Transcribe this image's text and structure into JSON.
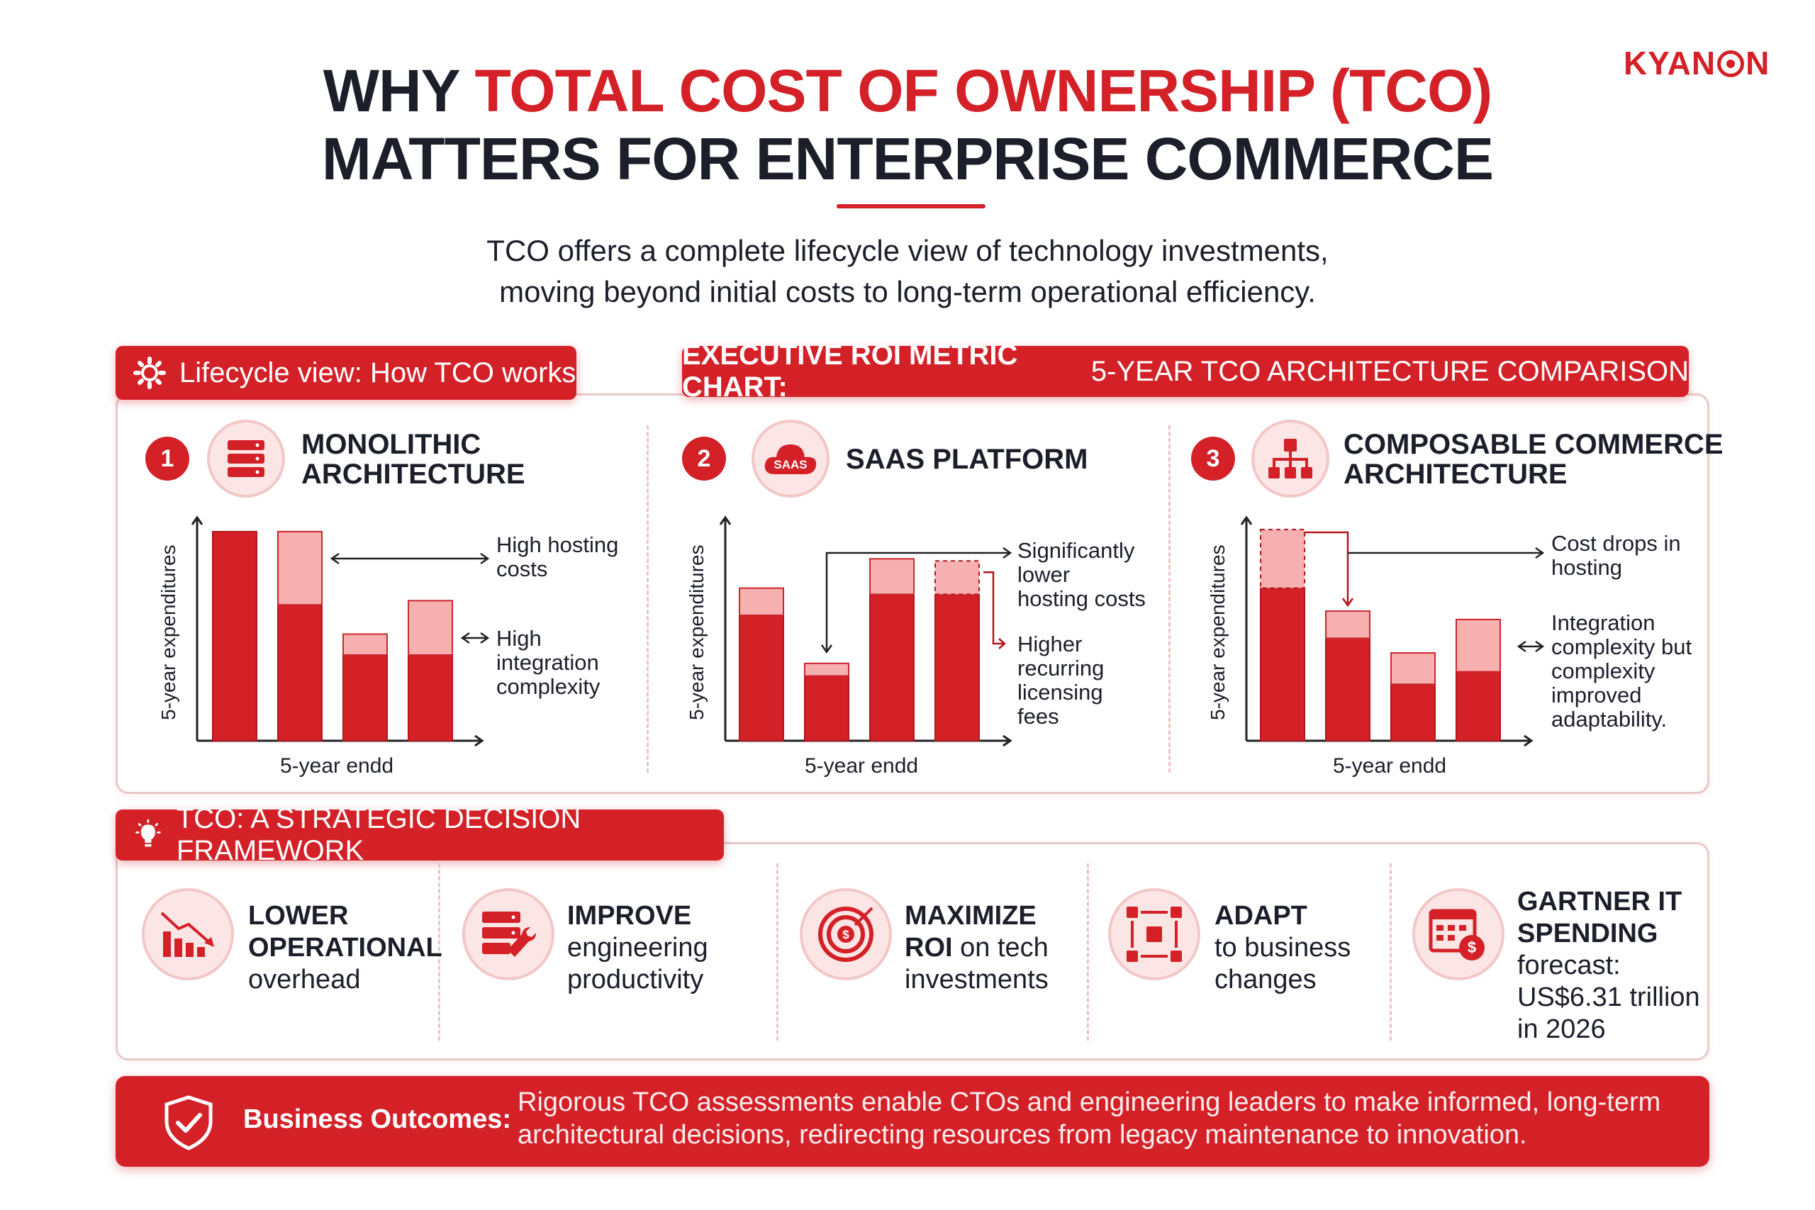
{
  "logo": {
    "text_a": "KYAN",
    "text_b": "N"
  },
  "header": {
    "title_line1_a": "WHY ",
    "title_line1_b": "TOTAL COST OF OWNERSHIP (TCO)",
    "title_line2": "MATTERS FOR ENTERPRISE COMMERCE",
    "subtitle_line1": "TCO offers a complete lifecycle view of technology investments,",
    "subtitle_line2": "moving beyond initial costs to long-term operational efficiency."
  },
  "lifecycle_tab": {
    "label": "Lifecycle view: How TCO works",
    "icon": "gear-icon"
  },
  "roi_tab": {
    "bold": "EXECUTIVE ROI METRIC CHART:",
    "rest": " 5-YEAR TCO ARCHITECTURE COMPARISON"
  },
  "steps": [
    {
      "num": "1",
      "icon": "server-icon",
      "title1": "MONOLITHIC",
      "title2": "ARCHITECTURE"
    },
    {
      "num": "2",
      "icon": "saas-cloud-icon",
      "icon_text": "SAAS",
      "title1": "SAAS PLATFORM",
      "title2": ""
    },
    {
      "num": "3",
      "icon": "hierarchy-icon",
      "title1": "COMPOSABLE COMMERCE",
      "title2": "ARCHITECTURE"
    }
  ],
  "chart_data": [
    {
      "type": "bar",
      "stacked": true,
      "ylabel": "5-year expenditures",
      "xlabel": "5-year endd",
      "ylim": [
        0,
        100
      ],
      "categories": [
        "",
        "",
        "",
        ""
      ],
      "series": [
        {
          "values": [
            100,
            65,
            41,
            41
          ]
        },
        {
          "values": [
            0,
            35,
            10,
            26
          ]
        }
      ],
      "annotations": [
        {
          "lines": [
            "High hosting",
            "costs"
          ]
        },
        {
          "lines": [
            "High",
            "integration",
            "complexity"
          ]
        }
      ]
    },
    {
      "type": "bar",
      "stacked": true,
      "ylabel": "5-year expenditures",
      "xlabel": "5-year endd",
      "ylim": [
        0,
        100
      ],
      "categories": [
        "",
        "",
        "",
        ""
      ],
      "series": [
        {
          "values": [
            60,
            31,
            70,
            70
          ]
        },
        {
          "values": [
            13,
            6,
            17,
            16
          ]
        }
      ],
      "dashed_top_bar_index": 3,
      "annotations": [
        {
          "lines": [
            "Significantly",
            "lower",
            "hosting costs"
          ]
        },
        {
          "lines": [
            "Higher",
            "recurring",
            "licensing",
            "fees"
          ]
        }
      ]
    },
    {
      "type": "bar",
      "stacked": true,
      "ylabel": "5-year expenditures",
      "xlabel": "5-year endd",
      "ylim": [
        0,
        100
      ],
      "categories": [
        "",
        "",
        "",
        ""
      ],
      "series": [
        {
          "values": [
            73,
            49,
            27,
            33
          ]
        },
        {
          "values": [
            28,
            13,
            15,
            25
          ]
        }
      ],
      "dashed_top_bar_index": 0,
      "annotations": [
        {
          "lines": [
            "Cost drops in",
            "hosting"
          ]
        },
        {
          "lines": [
            "Integration",
            "complexity but",
            "complexity",
            "improved",
            "adaptability."
          ]
        }
      ]
    }
  ],
  "framework_tab": {
    "label": "TCO: A STRATEGIC DECISION FRAMEWORK",
    "icon": "lightbulb-icon"
  },
  "framework": [
    {
      "icon": "declining-chart-icon",
      "bold1": "LOWER",
      "bold2": "OPERATIONAL",
      "rest": [
        "overhead"
      ]
    },
    {
      "icon": "server-wrench-icon",
      "bold1": "IMPROVE",
      "bold2": "",
      "rest": [
        "engineering",
        "productivity"
      ]
    },
    {
      "icon": "target-dollar-icon",
      "bold1": "MAXIMIZE",
      "bold_inline": "ROI",
      "inline_rest": " on tech",
      "rest": [
        "investments"
      ]
    },
    {
      "icon": "adapt-arrows-icon",
      "bold1": "ADAPT",
      "bold2": "",
      "rest": [
        "to business",
        "changes"
      ]
    },
    {
      "icon": "calendar-dollar-icon",
      "bold1": "GARTNER IT",
      "bold2": "SPENDING",
      "rest": [
        "forecast:",
        "US$6.31 trillion",
        "in 2026"
      ]
    }
  ],
  "outcome": {
    "icon": "shield-check-icon",
    "label": "Business Outcomes:",
    "line1": "Rigorous TCO assessments enable CTOs and engineering leaders to make informed, long-term",
    "line2": "architectural decisions, redirecting resources from legacy maintenance to innovation."
  },
  "colors": {
    "accent": "#d42027",
    "light": "#f7b0b0",
    "soft_bg": "#fbe5e5",
    "dark_text": "#1c1f2a"
  }
}
